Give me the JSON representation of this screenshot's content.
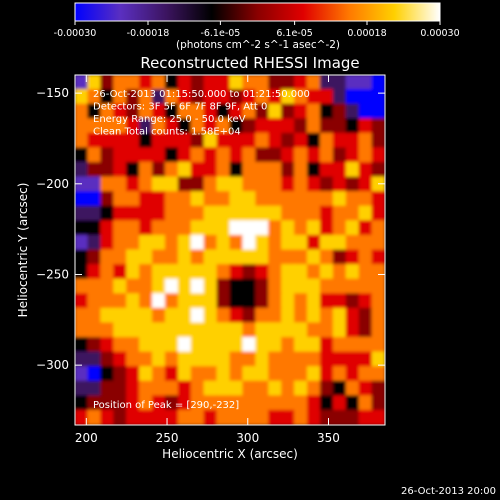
{
  "chart_data": {
    "type": "heatmap",
    "title": "Reconstructed RHESSI Image",
    "xlabel": "Heliocentric X (arcsec)",
    "ylabel": "Heliocentric Y (arcsec)",
    "xlim": [
      193,
      385
    ],
    "ylim": [
      -333,
      -140
    ],
    "x_ticks": [
      200,
      250,
      300,
      350
    ],
    "y_ticks": [
      -150,
      -200,
      -250,
      -300
    ],
    "colorbar": {
      "min": -0.0003,
      "max": 0.0003,
      "tick_values": [
        -0.0003,
        -0.00018,
        -6.1e-05,
        6.1e-05,
        0.00018,
        0.0003
      ],
      "tick_labels": [
        "-0.00030",
        "-0.00018",
        "-6.1e-05",
        "6.1e-05",
        "0.00018",
        "0.00030"
      ],
      "unit_label": "(photons cm^-2 s^-1 asec^-2)"
    },
    "annotations": [
      "26-Oct-2013 01:15:50.000 to 01:21:50.000",
      "Detectors: 3F 5F 6F 7F 8F 9F, Att 0",
      "Energy Range: 25.0 - 50.0 keV",
      "Clean    Total counts: 1.58E+04"
    ],
    "peak_label": "Position of Peak = [290,-232]",
    "peak": {
      "x": 290,
      "y": -232
    },
    "footer": "26-Oct-2013 20:00",
    "colormap": [
      "#0000ff",
      "#5a2fc0",
      "#3c1460",
      "#000000",
      "#8a0000",
      "#e00000",
      "#ff7800",
      "#ffd000",
      "#ffffff"
    ],
    "grid": {
      "nx": 24,
      "ny": 24,
      "z": [
        [
          1,
          7,
          4,
          6,
          6,
          5,
          6,
          3,
          5,
          4,
          5,
          5,
          7,
          6,
          6,
          4,
          4,
          5,
          6,
          2,
          2,
          1,
          1,
          0
        ],
        [
          7,
          6,
          3,
          6,
          4,
          6,
          2,
          6,
          5,
          4,
          5,
          5,
          4,
          5,
          6,
          5,
          7,
          6,
          5,
          5,
          2,
          0,
          0,
          0
        ],
        [
          6,
          3,
          6,
          5,
          4,
          6,
          5,
          3,
          6,
          6,
          5,
          3,
          5,
          6,
          4,
          7,
          4,
          5,
          6,
          3,
          4,
          2,
          0,
          0
        ],
        [
          6,
          6,
          6,
          6,
          5,
          2,
          6,
          5,
          3,
          6,
          5,
          6,
          3,
          4,
          5,
          5,
          5,
          4,
          6,
          4,
          4,
          3,
          5,
          4
        ],
        [
          6,
          5,
          5,
          5,
          5,
          3,
          5,
          5,
          5,
          4,
          7,
          5,
          5,
          5,
          6,
          5,
          4,
          5,
          3,
          6,
          5,
          5,
          6,
          4
        ],
        [
          3,
          6,
          4,
          5,
          5,
          5,
          5,
          3,
          5,
          6,
          5,
          6,
          5,
          6,
          4,
          4,
          5,
          6,
          5,
          6,
          4,
          5,
          6,
          5
        ],
        [
          2,
          4,
          4,
          5,
          3,
          6,
          4,
          6,
          7,
          5,
          5,
          6,
          3,
          6,
          6,
          6,
          4,
          6,
          3,
          5,
          5,
          7,
          5,
          4
        ],
        [
          1,
          1,
          6,
          6,
          5,
          6,
          7,
          7,
          4,
          4,
          6,
          7,
          7,
          6,
          6,
          6,
          5,
          6,
          5,
          4,
          5,
          4,
          5,
          7
        ],
        [
          0,
          0,
          4,
          6,
          6,
          5,
          5,
          6,
          6,
          7,
          6,
          6,
          7,
          7,
          6,
          6,
          6,
          6,
          6,
          6,
          7,
          6,
          6,
          5
        ],
        [
          2,
          2,
          3,
          5,
          5,
          5,
          5,
          6,
          6,
          6,
          7,
          7,
          7,
          7,
          7,
          7,
          6,
          6,
          6,
          5,
          6,
          6,
          7,
          5
        ],
        [
          3,
          3,
          5,
          6,
          6,
          5,
          6,
          6,
          6,
          7,
          7,
          7,
          8,
          8,
          8,
          6,
          7,
          6,
          7,
          5,
          6,
          7,
          5,
          6
        ],
        [
          1,
          2,
          5,
          6,
          6,
          7,
          7,
          6,
          7,
          8,
          6,
          7,
          6,
          8,
          7,
          6,
          7,
          7,
          5,
          7,
          7,
          6,
          6,
          6
        ],
        [
          3,
          4,
          6,
          6,
          7,
          7,
          6,
          6,
          7,
          6,
          7,
          7,
          7,
          7,
          7,
          6,
          6,
          6,
          7,
          6,
          4,
          5,
          6,
          5
        ],
        [
          3,
          5,
          6,
          5,
          7,
          6,
          7,
          7,
          7,
          7,
          7,
          6,
          5,
          4,
          5,
          6,
          7,
          7,
          6,
          7,
          6,
          7,
          6,
          6
        ],
        [
          6,
          6,
          6,
          7,
          6,
          6,
          7,
          8,
          7,
          8,
          7,
          4,
          3,
          3,
          4,
          6,
          7,
          7,
          7,
          6,
          6,
          6,
          6,
          6
        ],
        [
          5,
          6,
          6,
          6,
          7,
          6,
          8,
          6,
          7,
          7,
          7,
          4,
          3,
          3,
          4,
          6,
          7,
          6,
          7,
          5,
          5,
          4,
          5,
          6
        ],
        [
          6,
          6,
          7,
          7,
          7,
          7,
          6,
          7,
          7,
          8,
          7,
          6,
          5,
          4,
          6,
          6,
          7,
          6,
          7,
          6,
          7,
          5,
          4,
          6
        ],
        [
          6,
          6,
          6,
          7,
          7,
          7,
          7,
          7,
          7,
          7,
          7,
          7,
          7,
          6,
          7,
          7,
          7,
          7,
          6,
          6,
          7,
          5,
          4,
          6
        ],
        [
          3,
          4,
          5,
          6,
          6,
          7,
          7,
          7,
          8,
          7,
          7,
          7,
          7,
          8,
          7,
          7,
          6,
          7,
          7,
          5,
          6,
          6,
          6,
          6
        ],
        [
          2,
          2,
          4,
          5,
          6,
          6,
          7,
          6,
          7,
          7,
          7,
          7,
          6,
          6,
          7,
          6,
          6,
          6,
          6,
          5,
          5,
          5,
          5,
          7
        ],
        [
          1,
          0,
          3,
          4,
          5,
          7,
          6,
          5,
          7,
          6,
          6,
          7,
          6,
          7,
          7,
          6,
          6,
          6,
          7,
          5,
          6,
          5,
          6,
          6
        ],
        [
          2,
          2,
          4,
          4,
          5,
          6,
          6,
          6,
          5,
          6,
          7,
          7,
          7,
          6,
          6,
          7,
          6,
          7,
          6,
          4,
          3,
          6,
          5,
          4
        ],
        [
          3,
          4,
          4,
          4,
          5,
          6,
          5,
          4,
          5,
          6,
          6,
          6,
          6,
          6,
          6,
          6,
          6,
          6,
          5,
          3,
          5,
          3,
          6,
          4
        ],
        [
          5,
          6,
          5,
          4,
          5,
          5,
          5,
          5,
          6,
          6,
          5,
          6,
          6,
          6,
          6,
          5,
          5,
          6,
          5,
          4,
          4,
          4,
          5,
          5
        ]
      ]
    }
  }
}
